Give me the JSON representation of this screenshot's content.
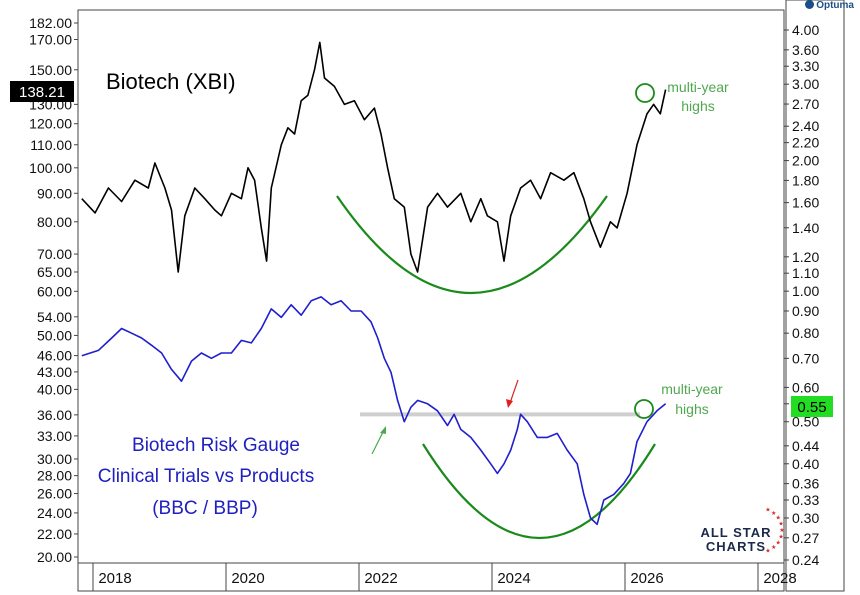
{
  "branding": {
    "vendor": "Optuma",
    "logo_text_1": "ALL STAR",
    "logo_text_2": "CHARTS"
  },
  "colors": {
    "xbi_line": "#000000",
    "gauge_line": "#1f1fcc",
    "arc": "#1a8a1a",
    "annotation_green": "#4fa84f",
    "red_arrow": "#e02020",
    "last_xbi_bg": "#000000",
    "last_gauge_bg": "#22dd22",
    "resistance": "#cccccc"
  },
  "chart_data": [
    {
      "type": "line",
      "title": "Biotech (XBI)",
      "series": [
        {
          "name": "Biotech (XBI)"
        }
      ],
      "y_axis": "left",
      "ylim": [
        20,
        182
      ],
      "yscale": "log",
      "ticks": [
        "182.00",
        "170.00",
        "150.00",
        "130.00",
        "120.00",
        "110.00",
        "100.00",
        "90.00",
        "80.00",
        "70.00",
        "65.00",
        "60.00",
        "54.00",
        "50.00",
        "46.00",
        "43.00",
        "40.00",
        "36.00",
        "33.00",
        "30.00",
        "28.00",
        "26.00",
        "24.00",
        "22.00",
        "20.00"
      ],
      "last_value": "138.21",
      "x_ticks": [
        "2018",
        "2020",
        "2022",
        "2024",
        "2026",
        "2028"
      ],
      "points": [
        [
          2017.5,
          88
        ],
        [
          2017.7,
          83
        ],
        [
          2017.9,
          92
        ],
        [
          2018.1,
          87
        ],
        [
          2018.3,
          95
        ],
        [
          2018.5,
          92
        ],
        [
          2018.6,
          102
        ],
        [
          2018.75,
          92
        ],
        [
          2018.85,
          84
        ],
        [
          2018.95,
          65
        ],
        [
          2019.05,
          82
        ],
        [
          2019.2,
          92
        ],
        [
          2019.35,
          88
        ],
        [
          2019.5,
          84
        ],
        [
          2019.6,
          82
        ],
        [
          2019.75,
          90
        ],
        [
          2019.9,
          88
        ],
        [
          2020.0,
          100
        ],
        [
          2020.1,
          95
        ],
        [
          2020.2,
          78
        ],
        [
          2020.28,
          68
        ],
        [
          2020.35,
          92
        ],
        [
          2020.5,
          110
        ],
        [
          2020.6,
          118
        ],
        [
          2020.7,
          115
        ],
        [
          2020.8,
          132
        ],
        [
          2020.9,
          135
        ],
        [
          2021.0,
          150
        ],
        [
          2021.08,
          168
        ],
        [
          2021.15,
          145
        ],
        [
          2021.3,
          140
        ],
        [
          2021.45,
          130
        ],
        [
          2021.6,
          132
        ],
        [
          2021.75,
          122
        ],
        [
          2021.9,
          128
        ],
        [
          2022.0,
          115
        ],
        [
          2022.1,
          100
        ],
        [
          2022.2,
          88
        ],
        [
          2022.35,
          85
        ],
        [
          2022.45,
          70
        ],
        [
          2022.55,
          65
        ],
        [
          2022.7,
          85
        ],
        [
          2022.85,
          90
        ],
        [
          2023.0,
          85
        ],
        [
          2023.2,
          90
        ],
        [
          2023.35,
          80
        ],
        [
          2023.5,
          88
        ],
        [
          2023.6,
          82
        ],
        [
          2023.75,
          80
        ],
        [
          2023.85,
          68
        ],
        [
          2023.95,
          82
        ],
        [
          2024.1,
          92
        ],
        [
          2024.25,
          95
        ],
        [
          2024.4,
          88
        ],
        [
          2024.55,
          98
        ],
        [
          2024.75,
          95
        ],
        [
          2024.9,
          98
        ],
        [
          2025.05,
          88
        ],
        [
          2025.15,
          80
        ],
        [
          2025.3,
          72
        ],
        [
          2025.45,
          80
        ],
        [
          2025.55,
          78
        ],
        [
          2025.7,
          90
        ],
        [
          2025.85,
          110
        ],
        [
          2026.0,
          125
        ],
        [
          2026.1,
          130
        ],
        [
          2026.2,
          125
        ],
        [
          2026.28,
          138.21
        ]
      ],
      "annotation": {
        "label_1": "multi-year",
        "label_2": "highs"
      }
    },
    {
      "type": "line",
      "title": "Biotech Risk Gauge",
      "subtitle": "Clinical Trials vs Products",
      "note": "(BBC / BBP)",
      "series": [
        {
          "name": "BBC / BBP"
        }
      ],
      "y_axis": "right",
      "ylim": [
        0.24,
        4.0
      ],
      "yscale": "log",
      "ticks": [
        "4.00",
        "3.60",
        "3.30",
        "3.00",
        "2.70",
        "2.40",
        "2.20",
        "2.00",
        "1.80",
        "1.60",
        "1.40",
        "1.20",
        "1.10",
        "1.00",
        "0.90",
        "0.80",
        "0.70",
        "0.60",
        "0.55",
        "0.50",
        "0.44",
        "0.40",
        "0.36",
        "0.33",
        "0.30",
        "0.27",
        "0.24"
      ],
      "last_value": "0.55",
      "points": [
        [
          2017.5,
          0.71
        ],
        [
          2017.75,
          0.73
        ],
        [
          2017.95,
          0.78
        ],
        [
          2018.1,
          0.82
        ],
        [
          2018.25,
          0.8
        ],
        [
          2018.4,
          0.78
        ],
        [
          2018.55,
          0.75
        ],
        [
          2018.7,
          0.72
        ],
        [
          2018.85,
          0.66
        ],
        [
          2019.0,
          0.62
        ],
        [
          2019.15,
          0.69
        ],
        [
          2019.3,
          0.72
        ],
        [
          2019.45,
          0.7
        ],
        [
          2019.6,
          0.72
        ],
        [
          2019.75,
          0.72
        ],
        [
          2019.9,
          0.77
        ],
        [
          2020.05,
          0.76
        ],
        [
          2020.2,
          0.82
        ],
        [
          2020.35,
          0.91
        ],
        [
          2020.5,
          0.87
        ],
        [
          2020.65,
          0.93
        ],
        [
          2020.8,
          0.88
        ],
        [
          2020.95,
          0.95
        ],
        [
          2021.1,
          0.97
        ],
        [
          2021.25,
          0.93
        ],
        [
          2021.4,
          0.95
        ],
        [
          2021.55,
          0.9
        ],
        [
          2021.7,
          0.9
        ],
        [
          2021.85,
          0.85
        ],
        [
          2021.95,
          0.78
        ],
        [
          2022.05,
          0.7
        ],
        [
          2022.15,
          0.65
        ],
        [
          2022.25,
          0.56
        ],
        [
          2022.35,
          0.5
        ],
        [
          2022.45,
          0.54
        ],
        [
          2022.55,
          0.56
        ],
        [
          2022.7,
          0.55
        ],
        [
          2022.85,
          0.53
        ],
        [
          2023.0,
          0.49
        ],
        [
          2023.1,
          0.52
        ],
        [
          2023.2,
          0.48
        ],
        [
          2023.35,
          0.46
        ],
        [
          2023.5,
          0.43
        ],
        [
          2023.65,
          0.4
        ],
        [
          2023.75,
          0.38
        ],
        [
          2023.85,
          0.4
        ],
        [
          2023.95,
          0.43
        ],
        [
          2024.05,
          0.48
        ],
        [
          2024.1,
          0.52
        ],
        [
          2024.2,
          0.5
        ],
        [
          2024.35,
          0.46
        ],
        [
          2024.5,
          0.46
        ],
        [
          2024.65,
          0.47
        ],
        [
          2024.8,
          0.43
        ],
        [
          2024.95,
          0.4
        ],
        [
          2025.05,
          0.34
        ],
        [
          2025.15,
          0.3
        ],
        [
          2025.25,
          0.29
        ],
        [
          2025.35,
          0.33
        ],
        [
          2025.5,
          0.34
        ],
        [
          2025.65,
          0.36
        ],
        [
          2025.75,
          0.38
        ],
        [
          2025.85,
          0.45
        ],
        [
          2026.0,
          0.5
        ],
        [
          2026.15,
          0.53
        ],
        [
          2026.28,
          0.55
        ]
      ],
      "resistance_level": 0.52,
      "annotation": {
        "label_1": "multi-year",
        "label_2": "highs"
      }
    }
  ]
}
